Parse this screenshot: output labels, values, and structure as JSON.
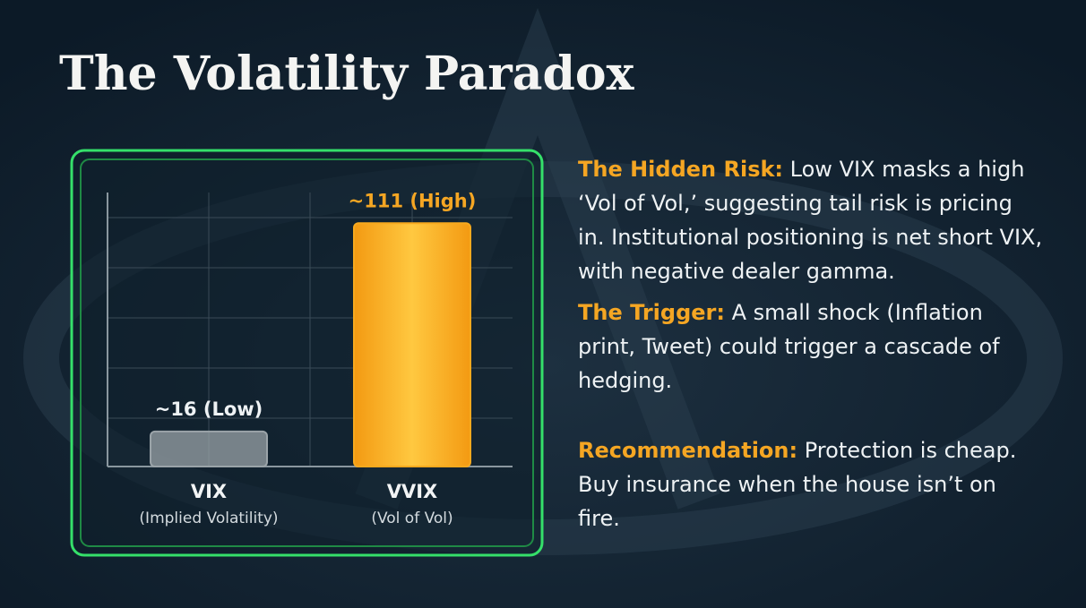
{
  "chart_data": {
    "type": "bar",
    "title": "The Volatility Paradox",
    "categories": [
      "VIX",
      "VVIX"
    ],
    "category_notes": [
      "(Implied Volatility)",
      "(Vol of Vol)"
    ],
    "values": [
      16,
      111
    ],
    "value_labels": [
      "~16 (Low)",
      "~111 (High)"
    ],
    "colors": [
      "#9aa3a8",
      "#f7a91e"
    ],
    "ylim": [
      0,
      125
    ],
    "grid": true
  },
  "notes": [
    {
      "heading": "The Hidden Risk:",
      "text": "Low VIX masks a high ‘Vol of Vol,’ suggesting tail risk is pricing in. Institutional positioning is net short VIX, with negative dealer gamma."
    },
    {
      "heading": "The Trigger:",
      "text": "A small shock (Inflation print, Tweet) could trigger a cascade of hedging."
    },
    {
      "heading": "Recommendation:",
      "text": "Protection is cheap. Buy insurance when the house isn’t on fire."
    }
  ]
}
